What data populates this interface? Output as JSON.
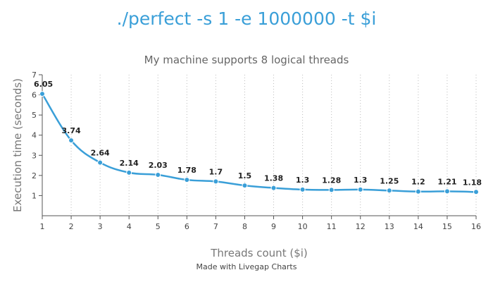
{
  "title": "./perfect -s 1 -e 1000000 -t $i",
  "subtitle": "My machine supports 8 logical threads",
  "footer": "Made with Livegap Charts",
  "colors": {
    "line": "#3a9fd8",
    "title": "#3a9fd8"
  },
  "chart_data": {
    "type": "line",
    "xlabel": "Threads count ($i)",
    "ylabel": "Execution time (seconds)",
    "ylim": [
      0,
      7
    ],
    "yticks": [
      1,
      2,
      3,
      4,
      5,
      6,
      7
    ],
    "grid": "vertical dotted",
    "categories": [
      "1",
      "2",
      "3",
      "4",
      "5",
      "6",
      "7",
      "8",
      "9",
      "10",
      "11",
      "12",
      "13",
      "14",
      "15",
      "16"
    ],
    "series": [
      {
        "values": [
          6.05,
          3.74,
          2.64,
          2.14,
          2.03,
          1.78,
          1.7,
          1.5,
          1.38,
          1.3,
          1.28,
          1.3,
          1.25,
          1.2,
          1.21,
          1.18
        ]
      }
    ]
  }
}
